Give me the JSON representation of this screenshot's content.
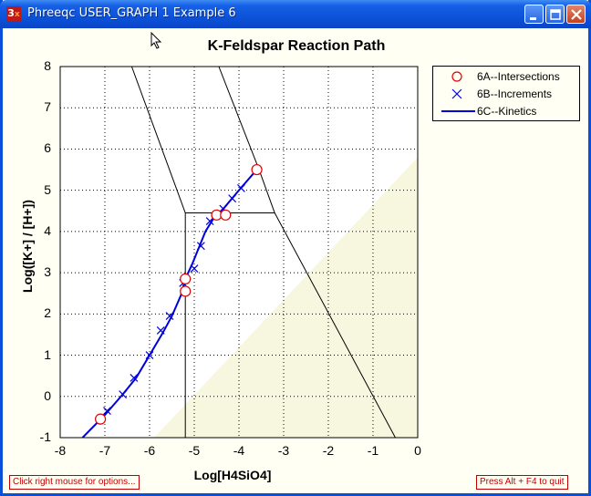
{
  "window": {
    "title": "Phreeqc USER_GRAPH 1 Example 6",
    "icon": "phreeqc-app-icon",
    "controls": [
      "minimize-icon",
      "maximize-icon",
      "close-icon"
    ]
  },
  "status": {
    "left_hint": "Click right mouse for options...",
    "right_hint": "Press Alt + F4 to quit"
  },
  "chart_data": {
    "type": "line",
    "title": "K-Feldspar Reaction Path",
    "xlabel": "Log[H4SiO4]",
    "ylabel": "Log([K+] / [H+])",
    "xlim": [
      -8,
      0
    ],
    "ylim": [
      -1,
      8
    ],
    "x_ticks": [
      "-8",
      "-7",
      "-6",
      "-5",
      "-4",
      "-3",
      "-2",
      "-1",
      "0"
    ],
    "y_ticks": [
      "8",
      "7",
      "6",
      "5",
      "4",
      "3",
      "2",
      "1",
      "0",
      "-1"
    ],
    "grid": true,
    "legend_position": "outside-right",
    "series": [
      {
        "name": "6A--Intersections",
        "marker": "circle",
        "color": "#e00000",
        "x": [
          -7.1,
          -5.2,
          -5.2,
          -4.5,
          -4.3,
          -3.6
        ],
        "y": [
          -0.55,
          2.55,
          2.85,
          4.4,
          4.4,
          5.5
        ]
      },
      {
        "name": "6B--Increments",
        "marker": "x",
        "color": "#0000e0",
        "x": [
          -6.95,
          -6.6,
          -6.35,
          -6.0,
          -5.75,
          -5.55,
          -5.25,
          -5.0,
          -4.85,
          -4.65,
          -4.35,
          -4.15,
          -3.95
        ],
        "y": [
          -0.35,
          0.05,
          0.45,
          1.0,
          1.6,
          1.95,
          2.75,
          3.1,
          3.65,
          4.25,
          4.55,
          4.8,
          5.05
        ]
      },
      {
        "name": "6C--Kinetics",
        "marker": "none",
        "color": "#0000dd",
        "x": [
          -7.5,
          -7.0,
          -6.6,
          -6.3,
          -6.0,
          -5.7,
          -5.5,
          -5.3,
          -5.2,
          -5.05,
          -4.9,
          -4.75,
          -4.55,
          -4.35,
          -4.0,
          -3.6
        ],
        "y": [
          -1.0,
          -0.45,
          0.05,
          0.45,
          1.0,
          1.55,
          1.95,
          2.45,
          2.85,
          3.2,
          3.6,
          4.0,
          4.35,
          4.55,
          5.0,
          5.5
        ]
      }
    ],
    "boundary_lines": [
      {
        "x": [
          -6.4,
          -5.2
        ],
        "y": [
          8.0,
          4.45
        ]
      },
      {
        "x": [
          -4.45,
          -3.55
        ],
        "y": [
          8.0,
          5.5
        ]
      },
      {
        "x": [
          -5.2,
          -3.2
        ],
        "y": [
          4.45,
          4.45
        ]
      },
      {
        "x": [
          -5.2,
          -5.2
        ],
        "y": [
          4.45,
          -1.0
        ]
      },
      {
        "x": [
          -3.55,
          -3.2
        ],
        "y": [
          5.5,
          4.45
        ]
      },
      {
        "x": [
          -3.2,
          -0.5
        ],
        "y": [
          4.45,
          -1.0
        ]
      }
    ],
    "shaded_region": {
      "color": "#f7f7e0",
      "x": [
        -5.9,
        0,
        0
      ],
      "y": [
        -1.0,
        5.8,
        -1.0
      ]
    }
  }
}
